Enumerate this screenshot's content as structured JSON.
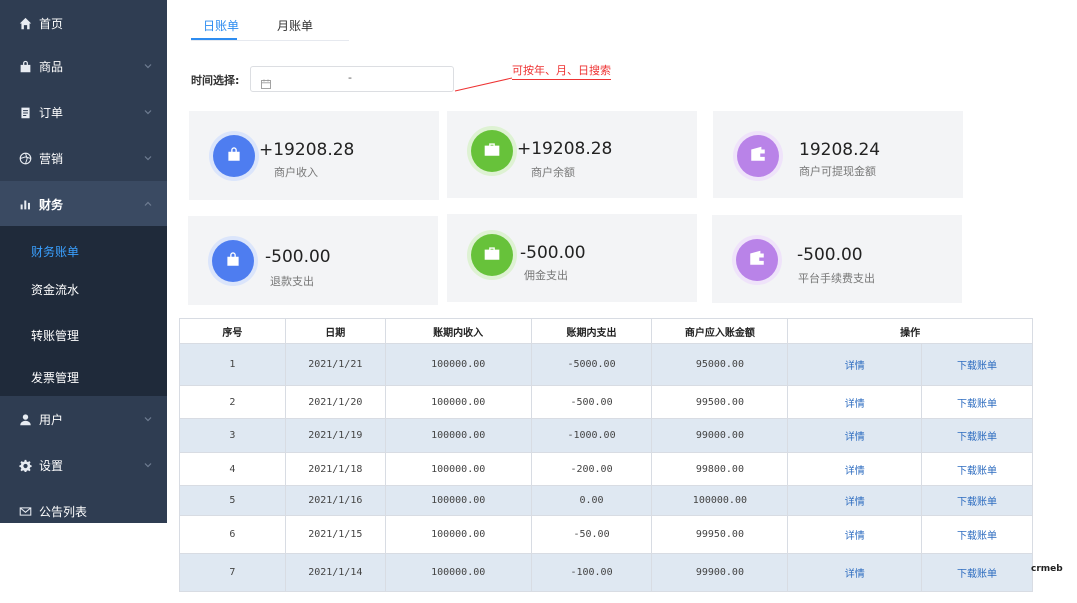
{
  "sidebar": {
    "items": [
      {
        "label": "首页",
        "icon": "home-icon"
      },
      {
        "label": "商品",
        "icon": "bag-icon"
      },
      {
        "label": "订单",
        "icon": "clipboard-icon"
      },
      {
        "label": "营销",
        "icon": "aperture-icon"
      },
      {
        "label": "财务",
        "icon": "bar-chart-icon"
      },
      {
        "label": "用户",
        "icon": "user-icon"
      },
      {
        "label": "设置",
        "icon": "gear-icon"
      },
      {
        "label": "公告列表",
        "icon": "mail-icon"
      }
    ],
    "sub_items": [
      "财务账单",
      "资金流水",
      "转账管理",
      "发票管理"
    ]
  },
  "tabs": [
    "日账单",
    "月账单"
  ],
  "filter": {
    "label": "时间选择:",
    "separator": "-"
  },
  "annotation": "可按年、月、日搜索",
  "cards": [
    {
      "value": "+19208.28",
      "label": "商户收入",
      "color": "#4e7df0",
      "icon": "shopping-bag-icon"
    },
    {
      "value": "+19208.28",
      "label": "商户余额",
      "color": "#67c23a",
      "icon": "briefcase-icon"
    },
    {
      "value": "19208.24",
      "label": "商户可提现金额",
      "color": "#b983e8",
      "icon": "wallet-icon"
    },
    {
      "value": "-500.00",
      "label": "退款支出",
      "color": "#4e7df0",
      "icon": "shopping-bag-icon"
    },
    {
      "value": "-500.00",
      "label": "佣金支出",
      "color": "#67c23a",
      "icon": "briefcase-icon"
    },
    {
      "value": "-500.00",
      "label": "平台手续费支出",
      "color": "#b983e8",
      "icon": "wallet-icon"
    }
  ],
  "table": {
    "headers": [
      "序号",
      "日期",
      "账期内收入",
      "账期内支出",
      "商户应入账金额",
      "操作"
    ],
    "detail_label": "详情",
    "download_label": "下载账单",
    "rows": [
      [
        "1",
        "2021/1/21",
        "100000.00",
        "-5000.00",
        "95000.00"
      ],
      [
        "2",
        "2021/1/20",
        "100000.00",
        "-500.00",
        "99500.00"
      ],
      [
        "3",
        "2021/1/19",
        "100000.00",
        "-1000.00",
        "99000.00"
      ],
      [
        "4",
        "2021/1/18",
        "100000.00",
        "-200.00",
        "99800.00"
      ],
      [
        "5",
        "2021/1/16",
        "100000.00",
        "0.00",
        "100000.00"
      ],
      [
        "6",
        "2021/1/15",
        "100000.00",
        "-50.00",
        "99950.00"
      ],
      [
        "7",
        "2021/1/14",
        "100000.00",
        "-100.00",
        "99900.00"
      ]
    ]
  },
  "brand": "crmeb"
}
